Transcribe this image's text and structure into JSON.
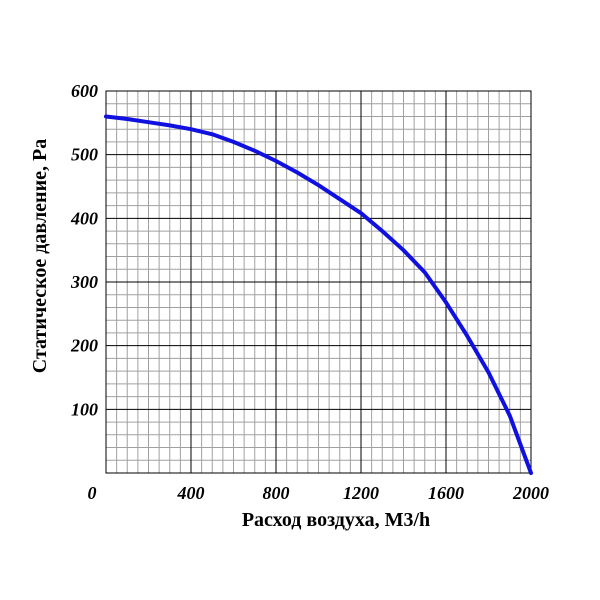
{
  "chart_data": {
    "type": "line",
    "title": "",
    "xlabel": "Расход воздуха, М3/h",
    "ylabel": "Статическое давление, Pa",
    "xlim": [
      0,
      2000
    ],
    "ylim": [
      0,
      600
    ],
    "x_ticks": [
      "0",
      "400",
      "800",
      "1200",
      "1600",
      "2000"
    ],
    "y_ticks": [
      "100",
      "200",
      "300",
      "400",
      "500",
      "600"
    ],
    "grid": true,
    "colors": {
      "line": "#1010e0",
      "grid_major": "#000000",
      "grid_minor": "#a0a0a0"
    },
    "series": [
      {
        "x": [
          0,
          100,
          200,
          300,
          400,
          500,
          600,
          700,
          800,
          900,
          1000,
          1100,
          1200,
          1300,
          1400,
          1500,
          1600,
          1700,
          1800,
          1900,
          2000
        ],
        "values": [
          560,
          556,
          551,
          546,
          540,
          532,
          520,
          506,
          490,
          472,
          452,
          430,
          408,
          380,
          350,
          315,
          268,
          215,
          158,
          90,
          0
        ]
      }
    ]
  }
}
